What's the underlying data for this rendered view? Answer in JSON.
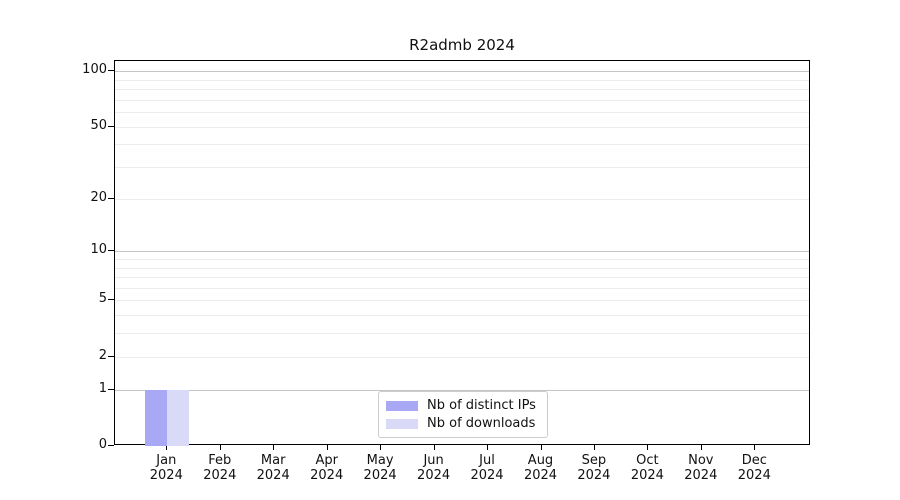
{
  "chart_data": {
    "type": "bar",
    "title": "R2admb 2024",
    "categories": [
      "Jan",
      "Feb",
      "Mar",
      "Apr",
      "May",
      "Jun",
      "Jul",
      "Aug",
      "Sep",
      "Oct",
      "Nov",
      "Dec"
    ],
    "x_year_label": "2024",
    "series": [
      {
        "name": "Nb of distinct IPs",
        "color": "#a8a8f4",
        "values": [
          1,
          0,
          0,
          0,
          0,
          0,
          0,
          0,
          0,
          0,
          0,
          0
        ]
      },
      {
        "name": "Nb of downloads",
        "color": "#d9d9f8",
        "values": [
          1,
          0,
          0,
          0,
          0,
          0,
          0,
          0,
          0,
          0,
          0,
          0
        ]
      }
    ],
    "ylabel": "",
    "xlabel": "",
    "yscale": "log1p",
    "ylim": [
      0,
      113
    ],
    "yticks": [
      0,
      1,
      2,
      5,
      10,
      20,
      50,
      100
    ],
    "major_gridlines": [
      1,
      10,
      100
    ],
    "minor_gridlines": [
      2,
      3,
      4,
      5,
      6,
      7,
      8,
      9,
      20,
      30,
      40,
      50,
      60,
      70,
      80,
      90
    ],
    "grid": true,
    "legend_position": "lower center"
  },
  "colors": {
    "background": "#ffffff",
    "spine": "#000000",
    "major_grid": "#c5c5c5",
    "minor_grid": "#ececec",
    "legend_border": "#cccccc",
    "bar_distinct_ips": "#a8a8f4",
    "bar_downloads": "#d9d9f8"
  }
}
